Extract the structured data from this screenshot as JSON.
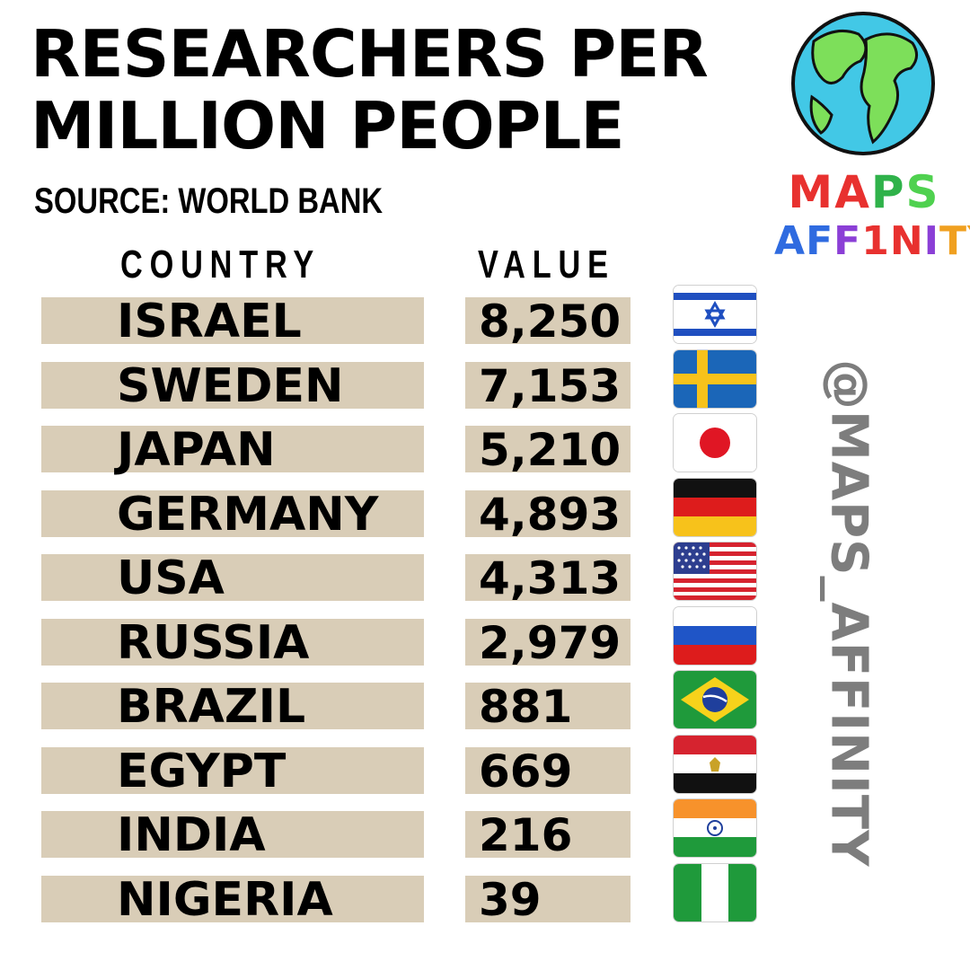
{
  "title": {
    "line1": "RESEARCHERS PER",
    "line2": "MILLION PEOPLE"
  },
  "source": "SOURCE: WORLD BANK",
  "headers": {
    "country": "COUNTRY",
    "value": "VALUE"
  },
  "rows": [
    {
      "country": "ISRAEL",
      "value": "8,250",
      "flag": "israel-flag-icon"
    },
    {
      "country": "SWEDEN",
      "value": "7,153",
      "flag": "sweden-flag-icon"
    },
    {
      "country": "JAPAN",
      "value": "5,210",
      "flag": "japan-flag-icon"
    },
    {
      "country": "GERMANY",
      "value": "4,893",
      "flag": "germany-flag-icon"
    },
    {
      "country": "USA",
      "value": "4,313",
      "flag": "usa-flag-icon"
    },
    {
      "country": "RUSSIA",
      "value": "2,979",
      "flag": "russia-flag-icon"
    },
    {
      "country": "BRAZIL",
      "value": "881",
      "flag": "brazil-flag-icon"
    },
    {
      "country": "EGYPT",
      "value": "669",
      "flag": "egypt-flag-icon"
    },
    {
      "country": "INDIA",
      "value": "216",
      "flag": "india-flag-icon"
    },
    {
      "country": "NIGERIA",
      "value": "39",
      "flag": "nigeria-flag-icon"
    }
  ],
  "logo": {
    "line1": [
      {
        "ch": "M",
        "color": "#e8312f"
      },
      {
        "ch": "A",
        "color": "#e8312f"
      },
      {
        "ch": "P",
        "color": "#2fb24a"
      },
      {
        "ch": "S",
        "color": "#4fd14f"
      }
    ],
    "line2": [
      {
        "ch": "A",
        "color": "#2f6be0"
      },
      {
        "ch": "F",
        "color": "#2f6be0"
      },
      {
        "ch": "F",
        "color": "#8b3fd6"
      },
      {
        "ch": "1",
        "color": "#e8312f"
      },
      {
        "ch": "N",
        "color": "#e8312f"
      },
      {
        "ch": "I",
        "color": "#8b3fd6"
      },
      {
        "ch": "T",
        "color": "#f0a020"
      },
      {
        "ch": "Y",
        "color": "#f0a020"
      }
    ],
    "globe_icon": "globe-icon"
  },
  "handle": "@MAPS_AFFINITY",
  "colors": {
    "bar": "#d9cdb7",
    "handle": "#7d7d7d"
  }
}
